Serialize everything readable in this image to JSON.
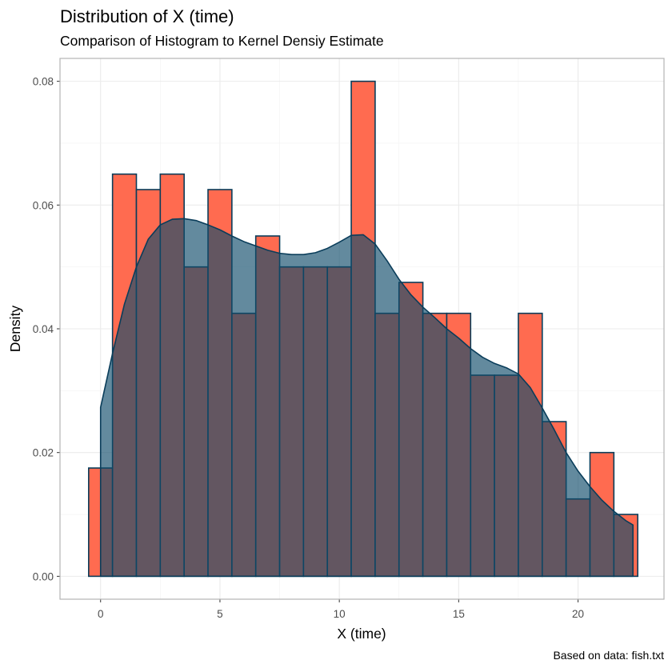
{
  "chart_data": {
    "type": "bar",
    "title": "Distribution of X (time)",
    "subtitle": "Comparison of Histogram to Kernel Densiy Estimate",
    "xlabel": "X (time)",
    "ylabel": "Density",
    "caption": "Based on data: fish.txt",
    "xlim": [
      -1.7,
      23.6
    ],
    "ylim": [
      -0.0037,
      0.0837
    ],
    "xticks": [
      0,
      5,
      10,
      15,
      20
    ],
    "yticks": [
      0.0,
      0.02,
      0.04,
      0.06,
      0.08
    ],
    "xtick_labels": [
      "0",
      "5",
      "10",
      "15",
      "20"
    ],
    "ytick_labels": [
      "0.00",
      "0.02",
      "0.04",
      "0.06",
      "0.08"
    ],
    "grid": true,
    "histogram": {
      "bin_width": 1,
      "bin_centers": [
        0,
        1,
        2,
        3,
        4,
        5,
        6,
        7,
        8,
        9,
        10,
        11,
        12,
        13,
        14,
        15,
        16,
        17,
        18,
        19,
        20,
        21,
        22
      ],
      "density": [
        0.0175,
        0.065,
        0.0625,
        0.065,
        0.05,
        0.0625,
        0.0425,
        0.055,
        0.05,
        0.05,
        0.05,
        0.08,
        0.0425,
        0.0475,
        0.0425,
        0.0425,
        0.0325,
        0.0325,
        0.0425,
        0.025,
        0.0125,
        0.02,
        0.01
      ],
      "fill_color": "#ff6b50",
      "outline_color": "#0a3d5a"
    },
    "kde": {
      "x": [
        0.0,
        0.5,
        1.0,
        1.5,
        2.0,
        2.5,
        3.0,
        3.5,
        4.0,
        4.5,
        5.0,
        5.5,
        6.0,
        6.5,
        7.0,
        7.5,
        8.0,
        8.5,
        9.0,
        9.5,
        10.0,
        10.5,
        11.0,
        11.5,
        12.0,
        12.5,
        13.0,
        13.5,
        14.0,
        14.5,
        15.0,
        15.5,
        16.0,
        16.5,
        17.0,
        17.5,
        18.0,
        18.5,
        19.0,
        19.5,
        20.0,
        20.5,
        21.0,
        21.5,
        22.0,
        22.3
      ],
      "y": [
        0.0273,
        0.036,
        0.044,
        0.05,
        0.0545,
        0.0568,
        0.0577,
        0.0578,
        0.0575,
        0.0568,
        0.056,
        0.055,
        0.0541,
        0.0534,
        0.0527,
        0.0522,
        0.052,
        0.052,
        0.0523,
        0.053,
        0.054,
        0.0551,
        0.0552,
        0.0537,
        0.051,
        0.048,
        0.0455,
        0.0435,
        0.0418,
        0.04,
        0.0385,
        0.0368,
        0.0354,
        0.0344,
        0.0337,
        0.0327,
        0.0305,
        0.0272,
        0.0237,
        0.02,
        0.017,
        0.0145,
        0.0123,
        0.0105,
        0.009,
        0.0083
      ],
      "fill_color": "#0f4c6a",
      "fill_opacity": 0.65,
      "line_color": "#0a3d5a"
    }
  }
}
